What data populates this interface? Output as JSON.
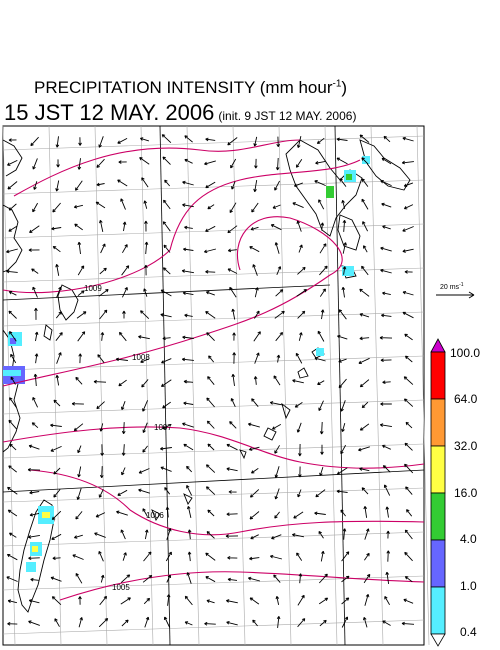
{
  "title": {
    "line1_prefix": "PRECIPITATION INTENSITY (mm hour",
    "line1_exp": "-1",
    "line1_suffix": ")",
    "line2_main": "15 JST 12 MAY. 2006",
    "line2_init": "(init. 9 JST 12 MAY. 2006)"
  },
  "wind_scale": {
    "label_prefix": "20 ms",
    "label_exp": "-1"
  },
  "isobars": [
    {
      "label": "1009"
    },
    {
      "label": "1008"
    },
    {
      "label": "1007"
    },
    {
      "label": "1006"
    },
    {
      "label": "1005"
    }
  ],
  "colorbar": {
    "levels": [
      "100.0",
      "64.0",
      "32.0",
      "16.0",
      "4.0",
      "1.0",
      "0.4"
    ],
    "colors": [
      "#cc00cc",
      "#ff0000",
      "#ff9933",
      "#ffff44",
      "#33cc33",
      "#6666ff",
      "#55eeff"
    ]
  },
  "colors": {
    "isobar": "#cc0066",
    "grid": "#aaaaaa",
    "coast": "#000000"
  }
}
